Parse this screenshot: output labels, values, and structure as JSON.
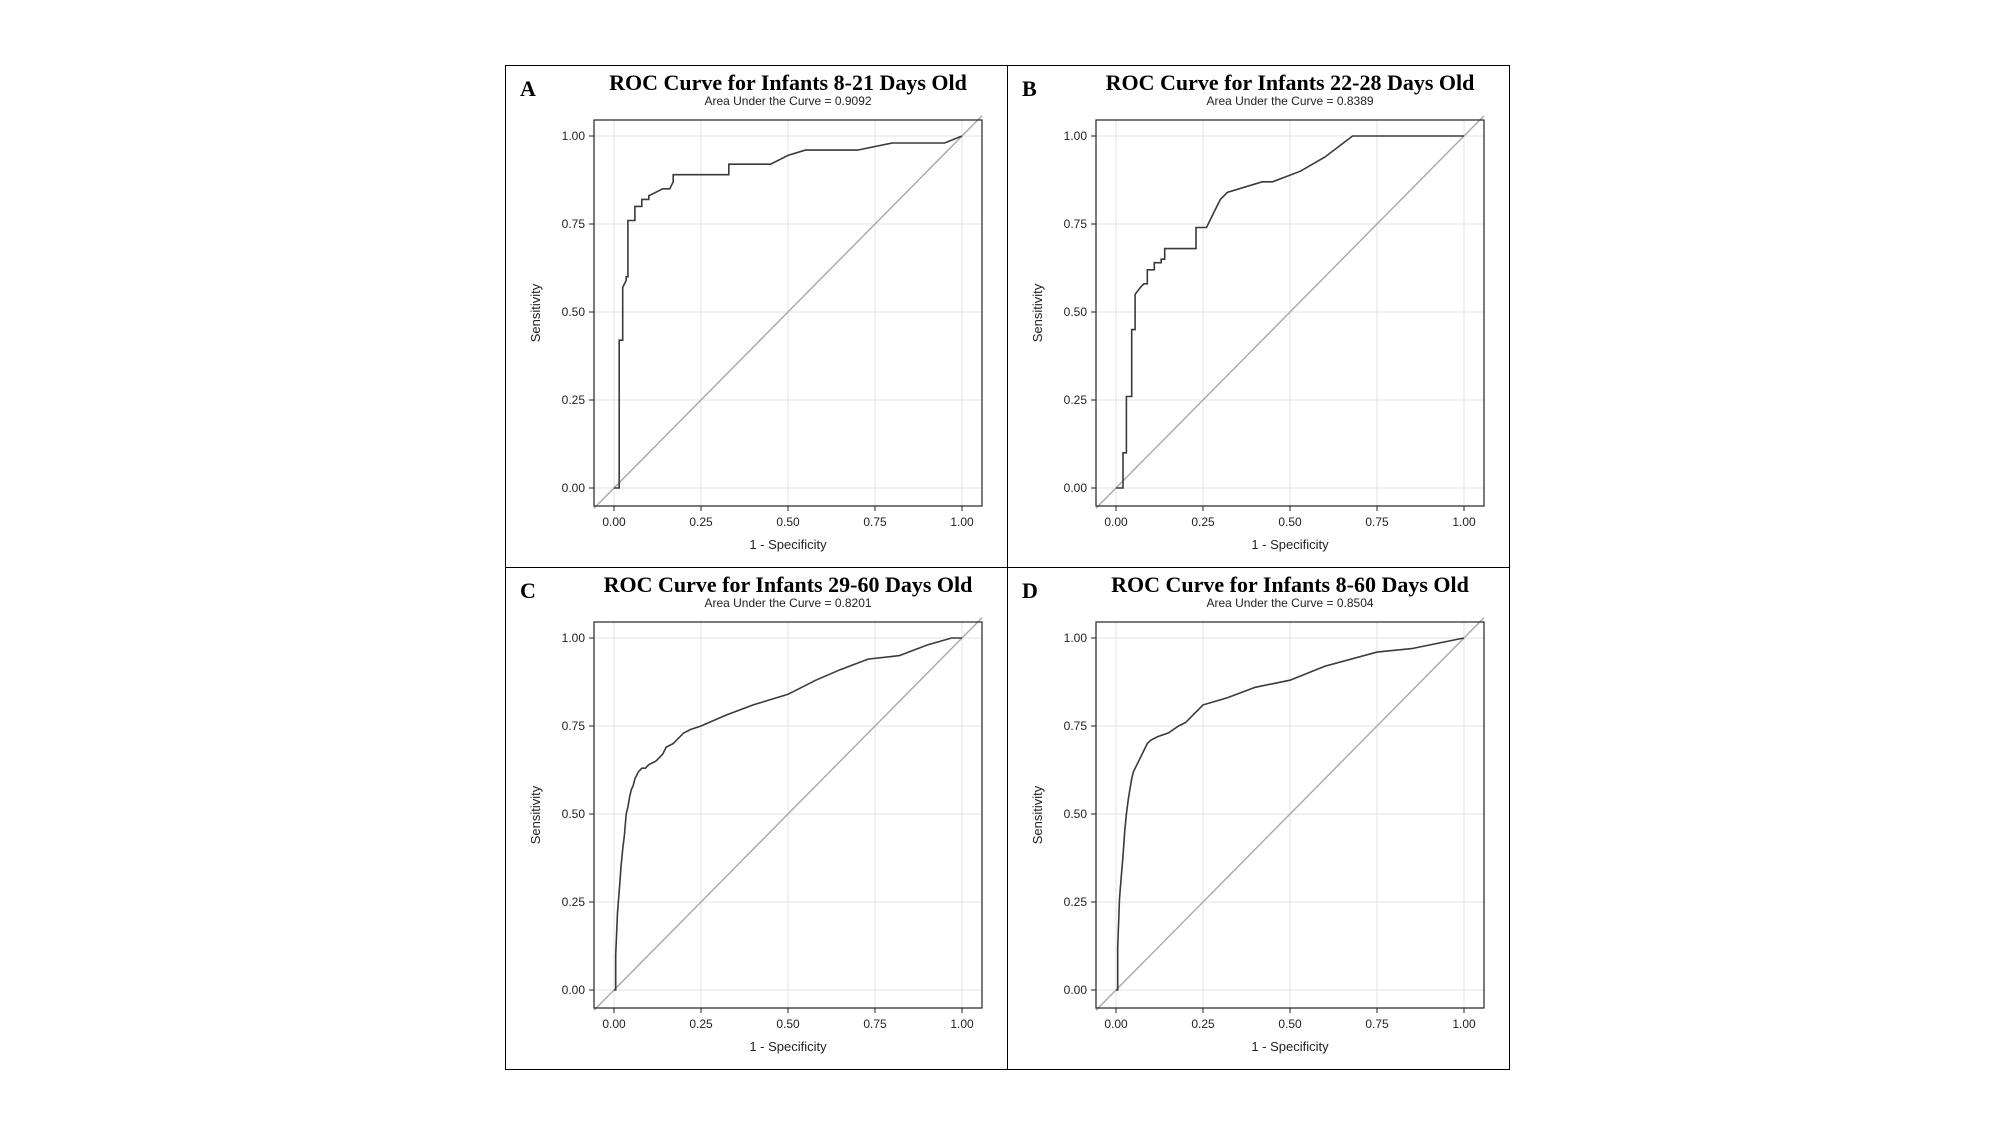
{
  "chart_data": [
    {
      "type": "line",
      "panel_label": "A",
      "title": "ROC Curve for Infants 8-21 Days Old",
      "subtitle": "Area Under the Curve = 0.9092",
      "xlabel": "1 - Specificity",
      "ylabel": "Sensitivity",
      "xlim": [
        0,
        1
      ],
      "ylim": [
        0,
        1
      ],
      "xticks": [
        "0.00",
        "0.25",
        "0.50",
        "0.75",
        "1.00"
      ],
      "yticks": [
        "0.00",
        "0.25",
        "0.50",
        "0.75",
        "1.00"
      ],
      "grid": true,
      "series": [
        {
          "x": [
            0,
            0.015,
            0.015,
            0.025,
            0.025,
            0.035,
            0.035,
            0.04,
            0.04,
            0.06,
            0.06,
            0.08,
            0.08,
            0.1,
            0.1,
            0.12,
            0.14,
            0.16,
            0.17,
            0.17,
            0.33,
            0.33,
            0.45,
            0.5,
            0.55,
            0.7,
            0.8,
            0.95,
            1.0
          ],
          "y": [
            0,
            0,
            0.42,
            0.42,
            0.57,
            0.59,
            0.6,
            0.6,
            0.76,
            0.76,
            0.8,
            0.8,
            0.82,
            0.82,
            0.83,
            0.84,
            0.85,
            0.85,
            0.87,
            0.89,
            0.89,
            0.92,
            0.92,
            0.945,
            0.96,
            0.96,
            0.98,
            0.98,
            1.0
          ]
        }
      ],
      "reference_line": {
        "x": [
          0,
          1
        ],
        "y": [
          0,
          1
        ]
      }
    },
    {
      "type": "line",
      "panel_label": "B",
      "title": "ROC Curve for Infants 22-28 Days Old",
      "subtitle": "Area Under the Curve = 0.8389",
      "xlabel": "1 - Specificity",
      "ylabel": "Sensitivity",
      "xlim": [
        0,
        1
      ],
      "ylim": [
        0,
        1
      ],
      "xticks": [
        "0.00",
        "0.25",
        "0.50",
        "0.75",
        "1.00"
      ],
      "yticks": [
        "0.00",
        "0.25",
        "0.50",
        "0.75",
        "1.00"
      ],
      "grid": true,
      "series": [
        {
          "x": [
            0,
            0.02,
            0.02,
            0.03,
            0.03,
            0.045,
            0.045,
            0.055,
            0.055,
            0.07,
            0.08,
            0.09,
            0.09,
            0.11,
            0.11,
            0.13,
            0.13,
            0.14,
            0.14,
            0.23,
            0.23,
            0.26,
            0.28,
            0.3,
            0.32,
            0.42,
            0.45,
            0.53,
            0.6,
            0.68,
            1.0
          ],
          "y": [
            0,
            0,
            0.1,
            0.1,
            0.26,
            0.26,
            0.45,
            0.45,
            0.55,
            0.57,
            0.58,
            0.58,
            0.62,
            0.62,
            0.64,
            0.64,
            0.65,
            0.65,
            0.68,
            0.68,
            0.74,
            0.74,
            0.78,
            0.82,
            0.84,
            0.87,
            0.87,
            0.9,
            0.94,
            1.0,
            1.0
          ]
        }
      ],
      "reference_line": {
        "x": [
          0,
          1
        ],
        "y": [
          0,
          1
        ]
      }
    },
    {
      "type": "line",
      "panel_label": "C",
      "title": "ROC Curve for Infants 29-60 Days Old",
      "subtitle": "Area Under the Curve = 0.8201",
      "xlabel": "1 - Specificity",
      "ylabel": "Sensitivity",
      "xlim": [
        0,
        1
      ],
      "ylim": [
        0,
        1
      ],
      "xticks": [
        "0.00",
        "0.25",
        "0.50",
        "0.75",
        "1.00"
      ],
      "yticks": [
        "0.00",
        "0.25",
        "0.50",
        "0.75",
        "1.00"
      ],
      "grid": true,
      "series": [
        {
          "x": [
            0,
            0.005,
            0.005,
            0.01,
            0.015,
            0.02,
            0.025,
            0.03,
            0.035,
            0.04,
            0.045,
            0.05,
            0.055,
            0.06,
            0.07,
            0.08,
            0.09,
            0.1,
            0.12,
            0.14,
            0.15,
            0.17,
            0.2,
            0.22,
            0.25,
            0.32,
            0.4,
            0.5,
            0.58,
            0.65,
            0.73,
            0.82,
            0.9,
            0.97,
            1.0
          ],
          "y": [
            0,
            0,
            0.1,
            0.22,
            0.28,
            0.35,
            0.4,
            0.44,
            0.5,
            0.52,
            0.55,
            0.57,
            0.58,
            0.6,
            0.62,
            0.63,
            0.63,
            0.64,
            0.65,
            0.67,
            0.69,
            0.7,
            0.73,
            0.74,
            0.75,
            0.78,
            0.81,
            0.84,
            0.88,
            0.91,
            0.94,
            0.95,
            0.98,
            1.0,
            1.0
          ]
        }
      ],
      "reference_line": {
        "x": [
          0,
          1
        ],
        "y": [
          0,
          1
        ]
      }
    },
    {
      "type": "line",
      "panel_label": "D",
      "title": "ROC Curve for Infants 8-60 Days Old",
      "subtitle": "Area Under the Curve = 0.8504",
      "xlabel": "1 - Specificity",
      "ylabel": "Sensitivity",
      "xlim": [
        0,
        1
      ],
      "ylim": [
        0,
        1
      ],
      "xticks": [
        "0.00",
        "0.25",
        "0.50",
        "0.75",
        "1.00"
      ],
      "yticks": [
        "0.00",
        "0.25",
        "0.50",
        "0.75",
        "1.00"
      ],
      "grid": true,
      "series": [
        {
          "x": [
            0,
            0.005,
            0.005,
            0.01,
            0.015,
            0.02,
            0.025,
            0.03,
            0.035,
            0.04,
            0.045,
            0.05,
            0.06,
            0.07,
            0.08,
            0.09,
            0.1,
            0.12,
            0.15,
            0.18,
            0.2,
            0.22,
            0.25,
            0.32,
            0.4,
            0.5,
            0.6,
            0.75,
            0.85,
            0.95,
            1.0
          ],
          "y": [
            0,
            0,
            0.12,
            0.26,
            0.32,
            0.38,
            0.45,
            0.5,
            0.54,
            0.57,
            0.6,
            0.62,
            0.64,
            0.66,
            0.68,
            0.7,
            0.71,
            0.72,
            0.73,
            0.75,
            0.76,
            0.78,
            0.81,
            0.83,
            0.86,
            0.88,
            0.92,
            0.96,
            0.97,
            0.99,
            1.0
          ]
        }
      ],
      "reference_line": {
        "x": [
          0,
          1
        ],
        "y": [
          0,
          1
        ]
      }
    }
  ]
}
